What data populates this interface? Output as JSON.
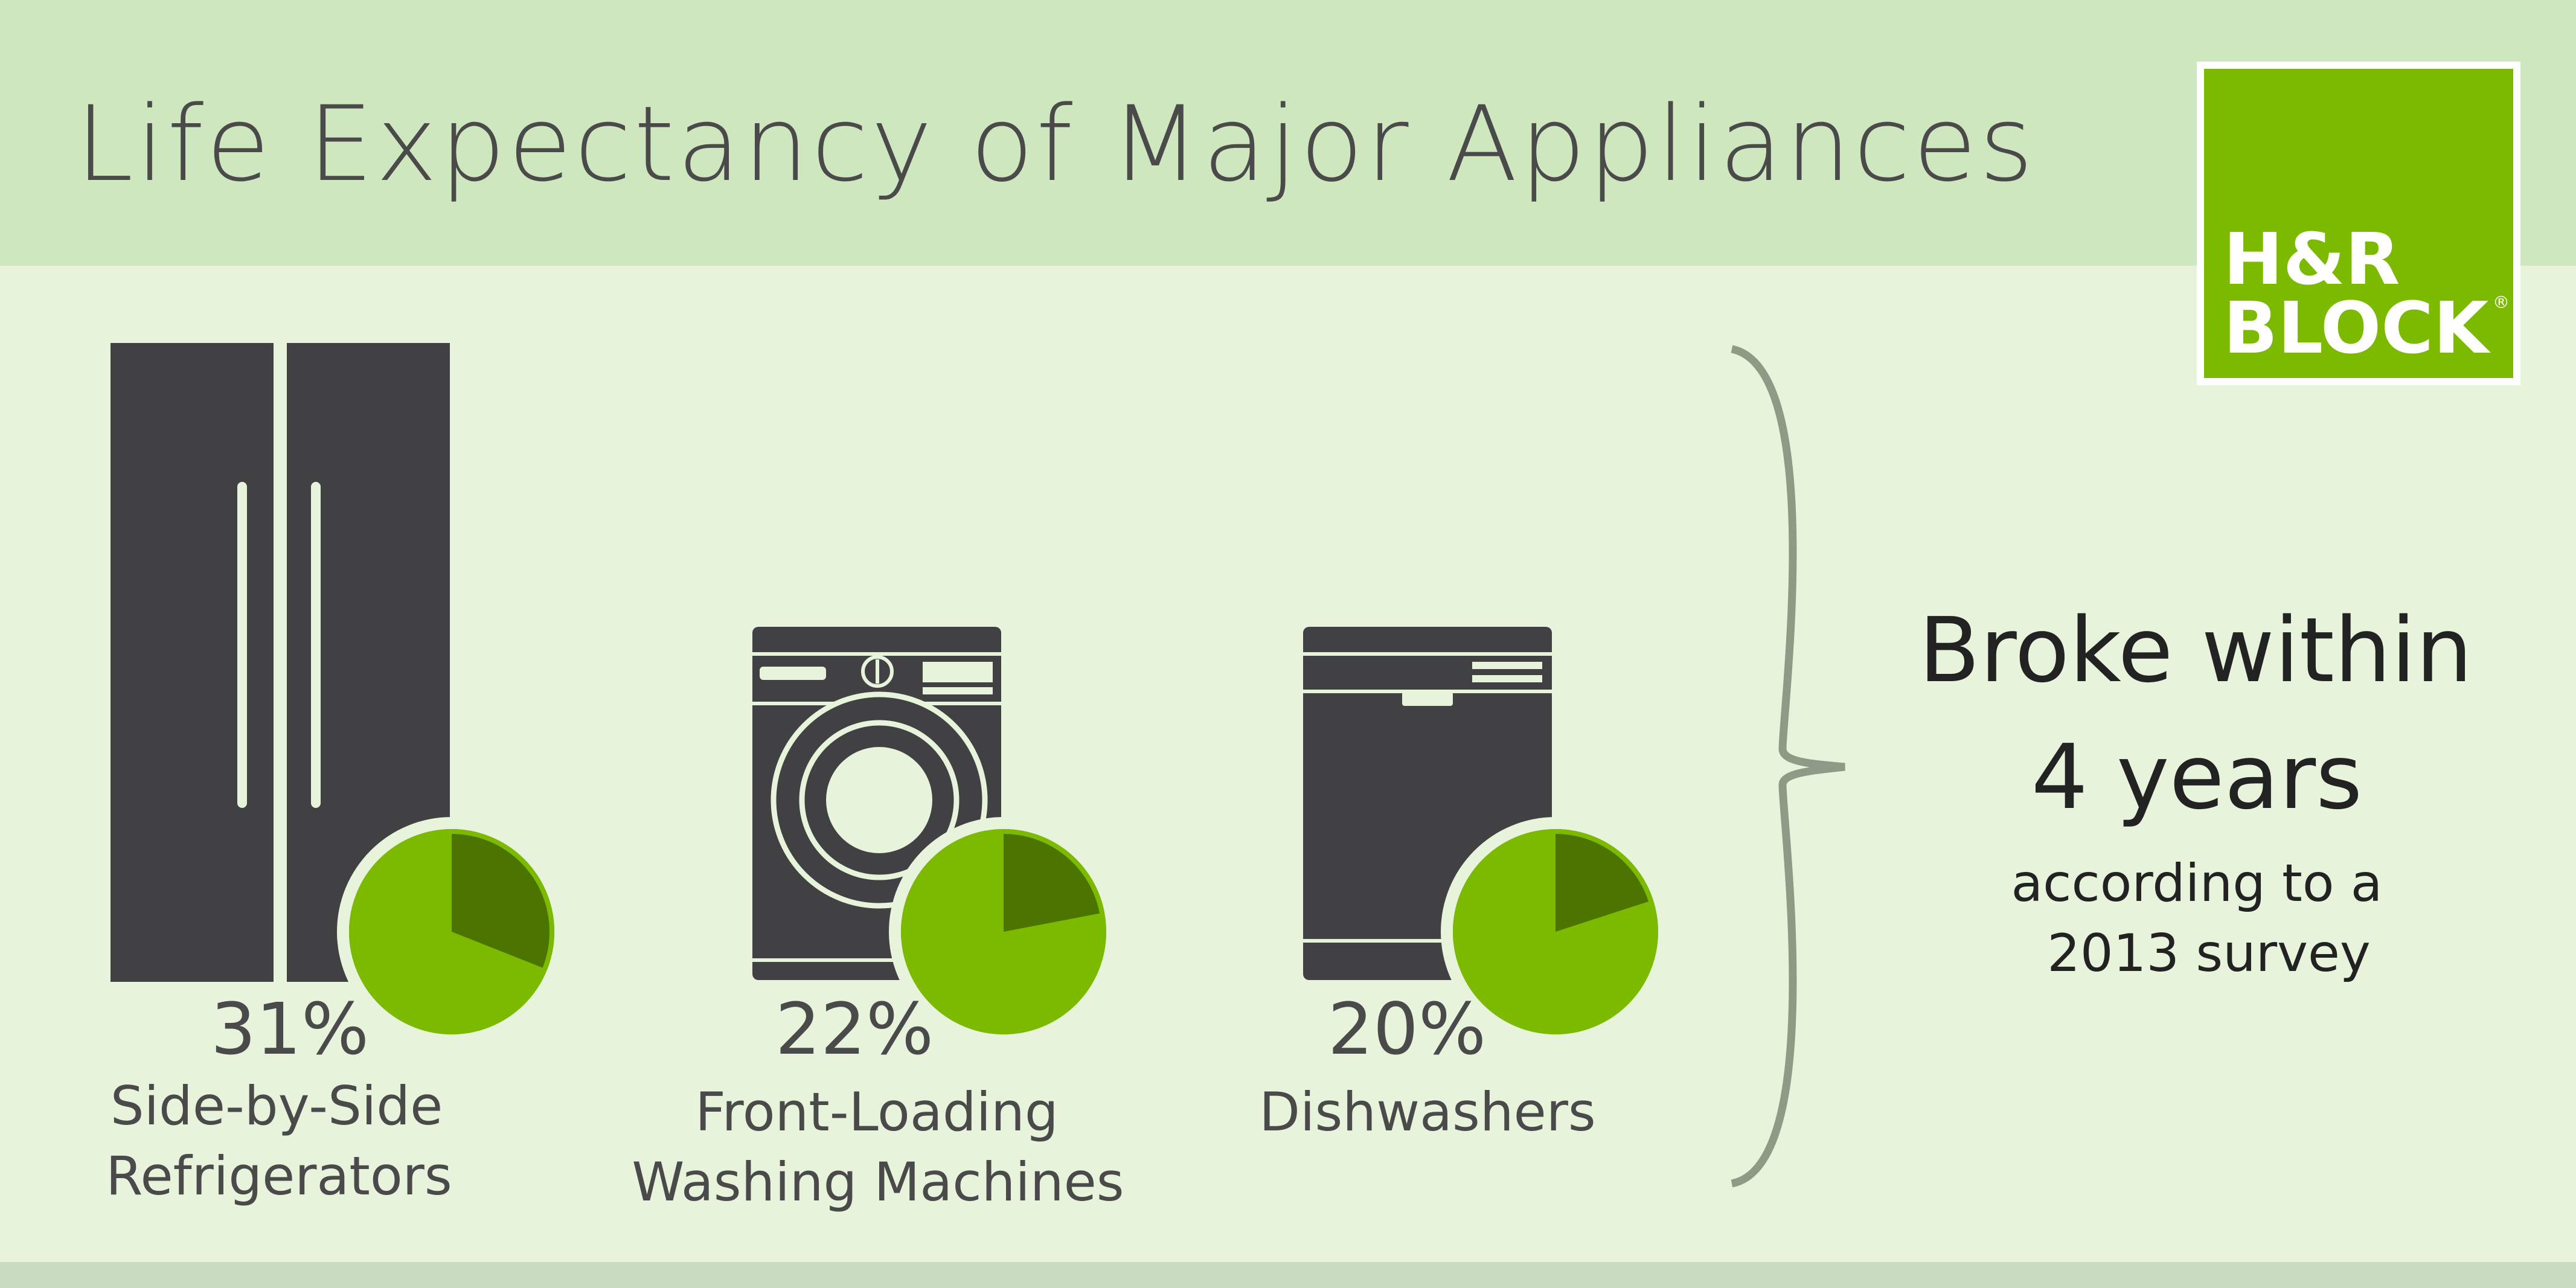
{
  "title": "Life Expectancy of Major Appliances",
  "colors": {
    "header_bg": "#cfe7bf",
    "body_bg": "#e8f3dc",
    "footer_bg": "#c9dcbf",
    "appliance": "#414143",
    "appliance_detail": "#e8f3dc",
    "pie_light": "#7cba00",
    "pie_dark": "#4c7400",
    "text_dark": "#4a4a4a",
    "text_black": "#222222",
    "brace": "#8e9a86",
    "logo_bg": "#7cba00",
    "logo_text": "#ffffff"
  },
  "logo": {
    "line1": "H&R",
    "line2": "BLOCK",
    "registered": "®"
  },
  "items": [
    {
      "percent_value": 31,
      "percent_label": "31%",
      "label_line1": "Side-by-Side",
      "label_line2": "Refrigerators",
      "icon": "refrigerator-icon"
    },
    {
      "percent_value": 22,
      "percent_label": "22%",
      "label_line1": "Front-Loading",
      "label_line2": "Washing Machines",
      "icon": "washing-machine-icon"
    },
    {
      "percent_value": 20,
      "percent_label": "20%",
      "label_line1": "Dishwashers",
      "label_line2": "",
      "icon": "dishwasher-icon"
    }
  ],
  "summary": {
    "line1": "Broke within",
    "line2": "4 years",
    "line3": "according to a",
    "line4": "2013 survey"
  }
}
